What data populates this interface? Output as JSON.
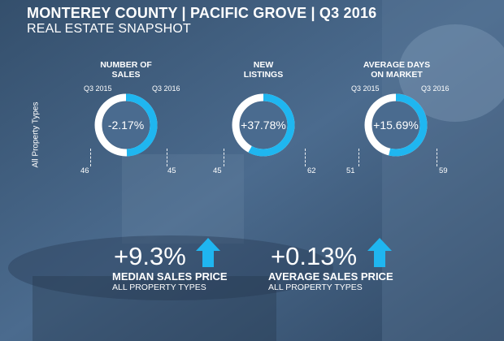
{
  "header": {
    "title": "MONTEREY COUNTY | PACIFIC GROVE | Q3 2016",
    "subtitle": "REAL ESTATE SNAPSHOT"
  },
  "side_label": "All Property Types",
  "colors": {
    "accent": "#1fb6f0",
    "ring_track": "#ffffff",
    "donut_center": "#4a6b8f",
    "background": "#3d5a78"
  },
  "icons": [
    "arrow-up-icon"
  ],
  "chart_data": [
    {
      "type": "donut",
      "title": "NUMBER OF\nSALES",
      "from_label": "Q3 2015",
      "to_label": "Q3 2016",
      "from_value": 46,
      "to_value": 45,
      "change_label": "-2.17%",
      "change_pct": -2.17
    },
    {
      "type": "donut",
      "title": "NEW\nLISTINGS",
      "from_label": "",
      "to_label": "",
      "from_value": 45,
      "to_value": 62,
      "change_label": "+37.78%",
      "change_pct": 37.78
    },
    {
      "type": "donut",
      "title": "AVERAGE DAYS\nON MARKET",
      "from_label": "Q3 2015",
      "to_label": "Q3 2016",
      "from_value": 51,
      "to_value": 59,
      "change_label": "+15.69%",
      "change_pct": 15.69
    }
  ],
  "prices": [
    {
      "change": "+9.3%",
      "label": "MEDIAN SALES PRICE",
      "sub": "ALL PROPERTY TYPES",
      "direction": "up"
    },
    {
      "change": "+0.13%",
      "label": "AVERAGE SALES PRICE",
      "sub": "ALL PROPERTY TYPES",
      "direction": "up"
    }
  ]
}
